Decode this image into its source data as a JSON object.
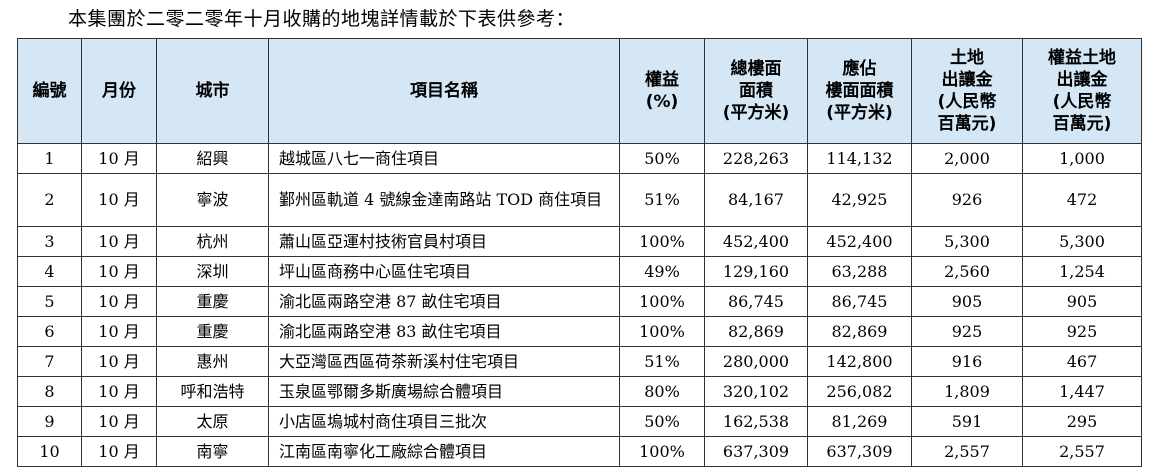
{
  "intro": "本集團於二零二零年十月收購的地塊詳情載於下表供參考：",
  "headers": [
    "編號",
    "月份",
    "城市",
    "項目名稱",
    "權益\n(%)",
    "總樓面\n面積\n(平方米)",
    "應佔\n樓面面積\n(平方米)",
    "土地\n出讓金\n(人民幣\n百萬元)",
    "權益土地\n出讓金\n(人民幣\n百萬元)"
  ],
  "rows": [
    {
      "no": "1",
      "month": "10 月",
      "city": "紹興",
      "project": "越城區八七一商住項目",
      "equity": "50%",
      "gfa": "228,263",
      "attributable_gfa": "114,132",
      "land_premium": "2,000",
      "attributable_premium": "1,000"
    },
    {
      "no": "2",
      "month": "10 月",
      "city": "寧波",
      "project": "鄞州區軌道 4 號線金達南路站 TOD 商住項目",
      "equity": "51%",
      "gfa": "84,167",
      "attributable_gfa": "42,925",
      "land_premium": "926",
      "attributable_premium": "472"
    },
    {
      "no": "3",
      "month": "10 月",
      "city": "杭州",
      "project": "蕭山區亞運村技術官員村項目",
      "equity": "100%",
      "gfa": "452,400",
      "attributable_gfa": "452,400",
      "land_premium": "5,300",
      "attributable_premium": "5,300"
    },
    {
      "no": "4",
      "month": "10 月",
      "city": "深圳",
      "project": "坪山區商務中心區住宅項目",
      "equity": "49%",
      "gfa": "129,160",
      "attributable_gfa": "63,288",
      "land_premium": "2,560",
      "attributable_premium": "1,254"
    },
    {
      "no": "5",
      "month": "10 月",
      "city": "重慶",
      "project": "渝北區兩路空港 87 畝住宅項目",
      "equity": "100%",
      "gfa": "86,745",
      "attributable_gfa": "86,745",
      "land_premium": "905",
      "attributable_premium": "905"
    },
    {
      "no": "6",
      "month": "10 月",
      "city": "重慶",
      "project": "渝北區兩路空港 83 畝住宅項目",
      "equity": "100%",
      "gfa": "82,869",
      "attributable_gfa": "82,869",
      "land_premium": "925",
      "attributable_premium": "925"
    },
    {
      "no": "7",
      "month": "10 月",
      "city": "惠州",
      "project": "大亞灣區西區荷茶新溪村住宅項目",
      "equity": "51%",
      "gfa": "280,000",
      "attributable_gfa": "142,800",
      "land_premium": "916",
      "attributable_premium": "467"
    },
    {
      "no": "8",
      "month": "10 月",
      "city": "呼和浩特",
      "project": "玉泉區鄂爾多斯廣場綜合體項目",
      "equity": "80%",
      "gfa": "320,102",
      "attributable_gfa": "256,082",
      "land_premium": "1,809",
      "attributable_premium": "1,447"
    },
    {
      "no": "9",
      "month": "10 月",
      "city": "太原",
      "project": "小店區塢城村商住項目三批次",
      "equity": "50%",
      "gfa": "162,538",
      "attributable_gfa": "81,269",
      "land_premium": "591",
      "attributable_premium": "295"
    },
    {
      "no": "10",
      "month": "10 月",
      "city": "南寧",
      "project": "江南區南寧化工廠綜合體項目",
      "equity": "100%",
      "gfa": "637,309",
      "attributable_gfa": "637,309",
      "land_premium": "2,557",
      "attributable_premium": "2,557"
    }
  ]
}
